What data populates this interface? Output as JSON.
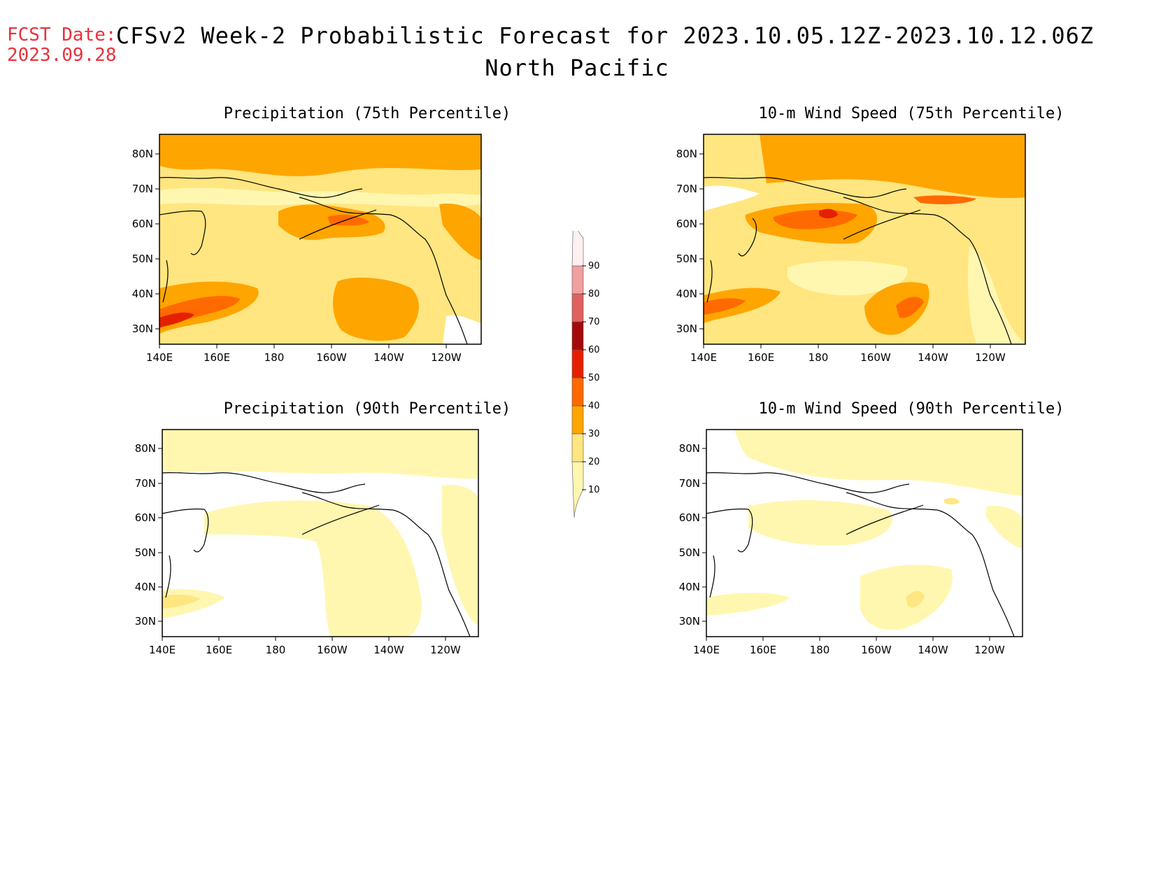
{
  "header": {
    "fcst_label": "FCST Date:",
    "fcst_date": "2023.09.28",
    "title_line1": "CFSv2 Week-2 Probabilistic Forecast for 2023.10.05.12Z-2023.10.12.06Z",
    "title_line2": "North Pacific"
  },
  "panels": [
    {
      "id": "precip75",
      "title": "Precipitation (75th Percentile)"
    },
    {
      "id": "wind75",
      "title": "10-m Wind Speed (75th Percentile)"
    },
    {
      "id": "precip90",
      "title": "Precipitation (90th Percentile)"
    },
    {
      "id": "wind90",
      "title": "10-m Wind Speed (90th Percentile)"
    }
  ],
  "axes": {
    "lon_labels": [
      "140E",
      "160E",
      "180",
      "160W",
      "140W",
      "120W"
    ],
    "lat_labels": [
      "80N",
      "70N",
      "60N",
      "50N",
      "40N",
      "30N"
    ]
  },
  "colorbar": {
    "levels": [
      "10",
      "20",
      "30",
      "40",
      "50",
      "60",
      "70",
      "80",
      "90"
    ],
    "colors": [
      "#fff7b0",
      "#ffe680",
      "#ffa500",
      "#ff6a00",
      "#e52000",
      "#a50a0a",
      "#e06060",
      "#f0a0a0",
      "#fff0f0"
    ]
  },
  "palette": {
    "c10": "#fff7b0",
    "c20": "#ffe680",
    "c30": "#ffa500",
    "c40": "#ff6a00",
    "c50": "#e52000",
    "fcst_text": "#e8323c"
  }
}
